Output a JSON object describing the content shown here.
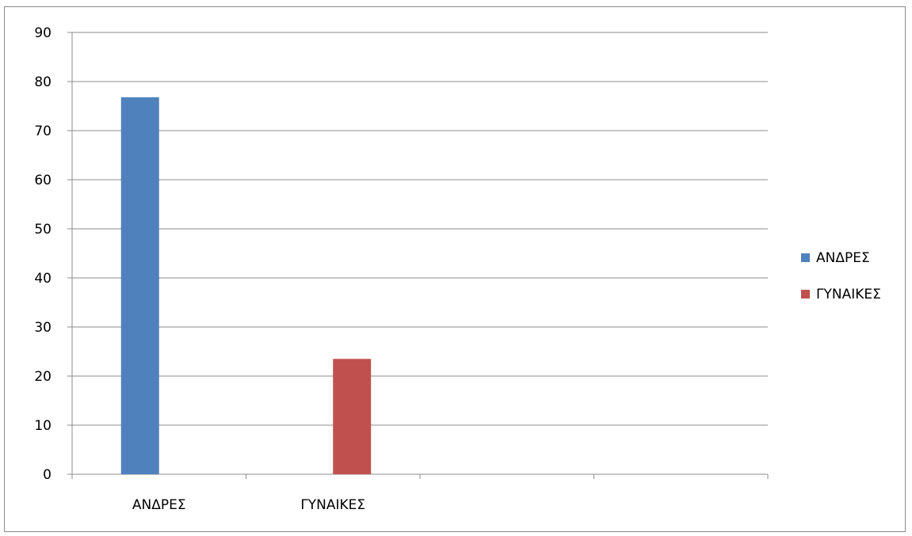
{
  "chart_data": {
    "type": "bar",
    "categories": [
      "ΑΝΔΡΕΣ",
      "ΓΥΝΑΙΚΕΣ",
      "",
      ""
    ],
    "series": [
      {
        "name": "ΑΝΔΡΕΣ",
        "color": "#4f81bd",
        "values": [
          76.8,
          null,
          null,
          null
        ]
      },
      {
        "name": "ΓΥΝΑΙΚΕΣ",
        "color": "#c0504d",
        "values": [
          null,
          23.5,
          null,
          null
        ]
      }
    ],
    "title": "",
    "xlabel": "",
    "ylabel": "",
    "ylim": [
      0,
      90
    ],
    "yticks": [
      "0",
      "10",
      "20",
      "30",
      "40",
      "50",
      "60",
      "70",
      "80",
      "90"
    ],
    "grid": true,
    "legend_position": "right"
  }
}
